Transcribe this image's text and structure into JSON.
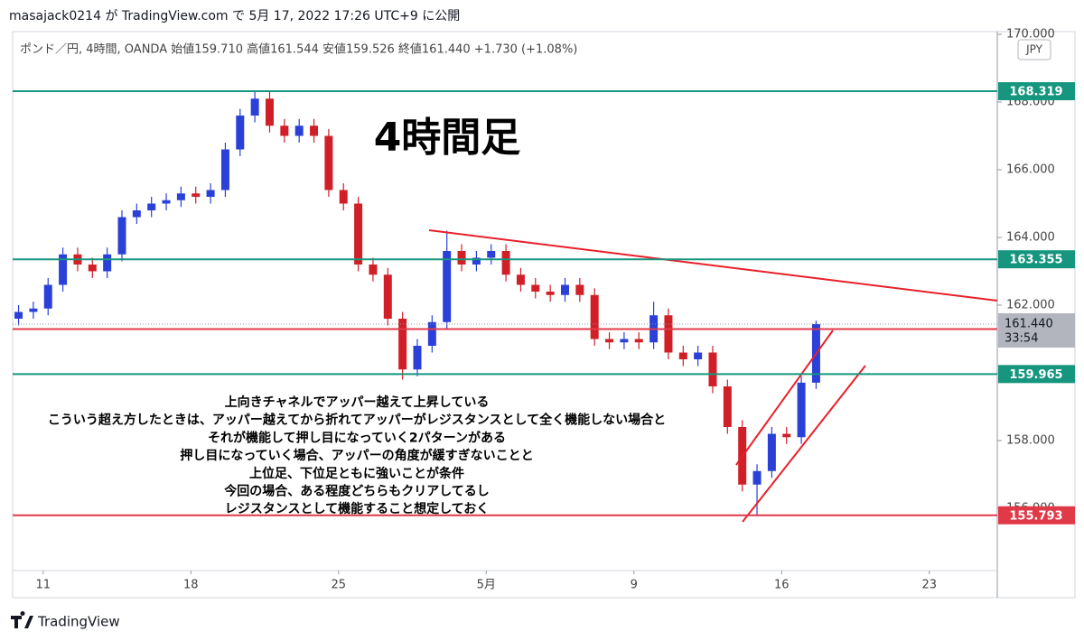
{
  "header": {
    "published": "masajack0214 が TradingView.com で 5月 17, 2022 17:26 UTC+9 に公開",
    "legend": "ポンド／円, 4時間, OANDA  始値159.710  高値161.544  安値159.526  終値161.440  +1.730 (+1.08%)",
    "currency": "JPY"
  },
  "footer": {
    "brand": "TradingView"
  },
  "chart_data": {
    "type": "candlestick",
    "title": "4時間足",
    "annotation": [
      "上向きチャネルでアッパー越えて上昇している",
      "こういう超え方したときは、アッパー越えてから折れてアッパーがレジスタンスとして全く機能しない場合と",
      "それが機能して押し目になっていく2パターンがある",
      "押し目になっていく場合、アッパーの角度が緩すぎないことと",
      "上位足、下位足ともに強いことが条件",
      "今回の場合、ある程度どちらもクリアしてるし",
      "レジスタンスとして機能すること想定しておく"
    ],
    "x": [
      -5,
      -2,
      1,
      4,
      7,
      10,
      13,
      16,
      19,
      22,
      25,
      28,
      31,
      34,
      37,
      40,
      43,
      46,
      49,
      52,
      55,
      58,
      61,
      64,
      67,
      70,
      73,
      76,
      79,
      82,
      85,
      88,
      91,
      94,
      97,
      100,
      103,
      106,
      109,
      112,
      115,
      118,
      121,
      124,
      127,
      130,
      133,
      136,
      139,
      142,
      145,
      148,
      151,
      154,
      157
    ],
    "open": [
      161.6,
      161.8,
      161.9,
      162.6,
      163.5,
      163.2,
      163.0,
      163.5,
      164.6,
      164.8,
      165.0,
      165.1,
      165.3,
      165.2,
      165.4,
      166.6,
      167.6,
      168.1,
      167.3,
      167.0,
      167.3,
      167.0,
      165.4,
      165.0,
      163.2,
      162.9,
      161.6,
      160.1,
      160.8,
      161.5,
      163.6,
      163.2,
      163.4,
      163.6,
      162.9,
      162.6,
      162.4,
      162.3,
      162.6,
      162.3,
      161.0,
      160.9,
      161.0,
      160.9,
      161.7,
      160.6,
      160.4,
      160.6,
      159.6,
      158.4,
      156.7,
      157.1,
      158.2,
      158.1,
      159.71
    ],
    "high": [
      162.0,
      162.1,
      162.8,
      163.7,
      163.7,
      163.4,
      163.7,
      164.8,
      165.0,
      165.2,
      165.3,
      165.5,
      165.5,
      165.6,
      166.8,
      167.8,
      168.3,
      168.3,
      167.5,
      167.5,
      167.5,
      167.2,
      165.6,
      165.2,
      163.4,
      163.1,
      161.8,
      161.0,
      161.7,
      164.2,
      163.8,
      163.6,
      163.8,
      163.8,
      163.1,
      162.8,
      162.6,
      162.8,
      162.8,
      162.5,
      161.2,
      161.2,
      161.2,
      162.1,
      161.9,
      160.8,
      160.8,
      160.8,
      159.8,
      158.6,
      157.3,
      158.4,
      158.4,
      159.9,
      161.544
    ],
    "low": [
      161.4,
      161.6,
      161.7,
      162.4,
      163.0,
      162.8,
      162.8,
      163.3,
      164.4,
      164.6,
      164.8,
      164.9,
      165.0,
      165.0,
      165.2,
      166.4,
      167.4,
      167.1,
      166.8,
      166.8,
      166.8,
      165.2,
      164.8,
      163.0,
      162.7,
      161.4,
      159.8,
      159.9,
      160.6,
      161.3,
      163.0,
      163.0,
      163.2,
      162.7,
      162.4,
      162.2,
      162.1,
      162.1,
      162.1,
      160.8,
      160.7,
      160.7,
      160.7,
      160.7,
      160.4,
      160.2,
      160.2,
      159.4,
      158.2,
      156.5,
      155.8,
      156.9,
      157.9,
      157.9,
      159.526
    ],
    "close": [
      161.8,
      161.9,
      162.6,
      163.5,
      163.2,
      163.0,
      163.5,
      164.6,
      164.8,
      165.0,
      165.1,
      165.3,
      165.2,
      165.4,
      166.6,
      167.6,
      168.1,
      167.3,
      167.0,
      167.3,
      167.0,
      165.4,
      165.0,
      163.2,
      162.9,
      161.6,
      160.1,
      160.8,
      161.5,
      163.6,
      163.2,
      163.4,
      163.6,
      162.9,
      162.6,
      162.4,
      162.3,
      162.6,
      162.3,
      161.0,
      160.9,
      161.0,
      160.9,
      161.7,
      160.6,
      160.4,
      160.6,
      159.6,
      158.4,
      156.7,
      157.1,
      158.2,
      158.1,
      159.71,
      161.44
    ],
    "up_color": "#2a40d8",
    "down_color": "#d01f27",
    "levels": [
      {
        "value": 168.319,
        "color": "#16967f"
      },
      {
        "value": 163.355,
        "color": "#16967f"
      },
      {
        "value": 161.295,
        "color": "#e03a48"
      },
      {
        "value": 159.965,
        "color": "#16967f"
      },
      {
        "value": 155.793,
        "color": "#e03a48"
      }
    ],
    "last_price": {
      "value": 161.44,
      "label": "161.440",
      "countdown": "33:54"
    },
    "xlim": [
      -6.2,
      193.8
    ],
    "xticks": [
      {
        "value": 0,
        "label": "11"
      },
      {
        "value": 30,
        "label": "18"
      },
      {
        "value": 60,
        "label": "25"
      },
      {
        "value": 90,
        "label": "5月"
      },
      {
        "value": 120,
        "label": "9"
      },
      {
        "value": 150,
        "label": "16"
      },
      {
        "value": 180,
        "label": "23"
      }
    ],
    "ylim": [
      154.16,
      170.08
    ],
    "yticks": [
      {
        "value": 156,
        "label": "156.000"
      },
      {
        "value": 158,
        "label": "158.000"
      },
      {
        "value": 160,
        "label": "160.000"
      },
      {
        "value": 162,
        "label": "162.000"
      },
      {
        "value": 164,
        "label": "164.000"
      },
      {
        "value": 166,
        "label": "166.000"
      },
      {
        "value": 168,
        "label": "168.000"
      },
      {
        "value": 170,
        "label": "170.000"
      }
    ]
  }
}
